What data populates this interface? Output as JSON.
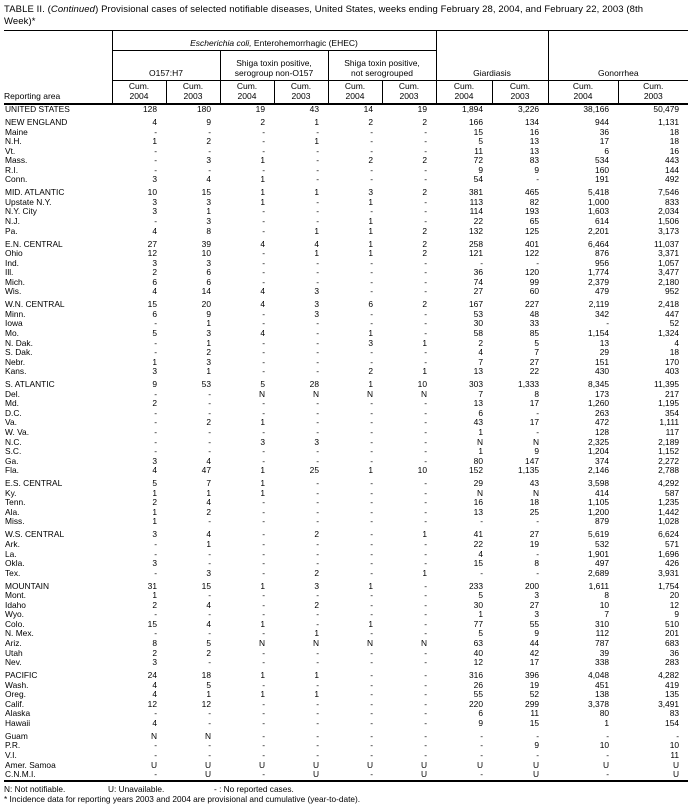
{
  "title": {
    "part1": "TABLE II. (",
    "part2": "Continued",
    "part3": ") Provisional cases of selected notifiable diseases, United States, weeks ending February 28, 2004, and February 22, 2003 (8th Week)*"
  },
  "header": {
    "reporting_area_label": "Reporting area",
    "ehec": {
      "italic": "Escherichia coli,",
      "rest": " Enterohemorrhagic (EHEC)"
    },
    "groups": {
      "o157": {
        "line1": "O157:H7",
        "line2": ""
      },
      "shiga_non_o157": {
        "line1": "Shiga toxin positive,",
        "line2": "serogroup non-O157"
      },
      "shiga_not_sero": {
        "line1": "Shiga toxin positive,",
        "line2": "not serogrouped"
      },
      "giardiasis": {
        "line1": "Giardiasis",
        "line2": ""
      },
      "gonorrhea": {
        "line1": "Gonorrhea",
        "line2": ""
      }
    },
    "columns": [
      {
        "label": "Cum.",
        "year": "2004"
      },
      {
        "label": "Cum.",
        "year": "2003"
      },
      {
        "label": "Cum.",
        "year": "2004"
      },
      {
        "label": "Cum.",
        "year": "2003"
      },
      {
        "label": "Cum.",
        "year": "2004"
      },
      {
        "label": "Cum.",
        "year": "2003"
      },
      {
        "label": "Cum.",
        "year": "2004"
      },
      {
        "label": "Cum.",
        "year": "2003"
      },
      {
        "label": "Cum.",
        "year": "2004"
      },
      {
        "label": "Cum.",
        "year": "2003"
      }
    ]
  },
  "sections": [
    {
      "rows": [
        {
          "area": "UNITED STATES",
          "values": [
            "128",
            "180",
            "19",
            "43",
            "14",
            "19",
            "1,894",
            "3,226",
            "38,166",
            "50,479"
          ]
        }
      ]
    },
    {
      "rows": [
        {
          "area": "NEW ENGLAND",
          "values": [
            "4",
            "9",
            "2",
            "1",
            "2",
            "2",
            "166",
            "134",
            "944",
            "1,131"
          ]
        },
        {
          "area": "Maine",
          "values": [
            "-",
            "-",
            "-",
            "-",
            "-",
            "-",
            "15",
            "16",
            "36",
            "18"
          ]
        },
        {
          "area": "N.H.",
          "values": [
            "1",
            "2",
            "-",
            "1",
            "-",
            "-",
            "5",
            "13",
            "17",
            "18"
          ]
        },
        {
          "area": "Vt.",
          "values": [
            "-",
            "-",
            "-",
            "-",
            "-",
            "-",
            "11",
            "13",
            "6",
            "16"
          ]
        },
        {
          "area": "Mass.",
          "values": [
            "-",
            "3",
            "1",
            "-",
            "2",
            "2",
            "72",
            "83",
            "534",
            "443"
          ]
        },
        {
          "area": "R.I.",
          "values": [
            "-",
            "-",
            "-",
            "-",
            "-",
            "-",
            "9",
            "9",
            "160",
            "144"
          ]
        },
        {
          "area": "Conn.",
          "values": [
            "3",
            "4",
            "1",
            "-",
            "-",
            "-",
            "54",
            "-",
            "191",
            "492"
          ]
        }
      ]
    },
    {
      "rows": [
        {
          "area": "MID. ATLANTIC",
          "values": [
            "10",
            "15",
            "1",
            "1",
            "3",
            "2",
            "381",
            "465",
            "5,418",
            "7,546"
          ]
        },
        {
          "area": "Upstate N.Y.",
          "values": [
            "3",
            "3",
            "1",
            "-",
            "1",
            "-",
            "113",
            "82",
            "1,000",
            "833"
          ]
        },
        {
          "area": "N.Y. City",
          "values": [
            "3",
            "1",
            "-",
            "-",
            "-",
            "-",
            "114",
            "193",
            "1,603",
            "2,034"
          ]
        },
        {
          "area": "N.J.",
          "values": [
            "-",
            "3",
            "-",
            "-",
            "1",
            "-",
            "22",
            "65",
            "614",
            "1,506"
          ]
        },
        {
          "area": "Pa.",
          "values": [
            "4",
            "8",
            "-",
            "1",
            "1",
            "2",
            "132",
            "125",
            "2,201",
            "3,173"
          ]
        }
      ]
    },
    {
      "rows": [
        {
          "area": "E.N. CENTRAL",
          "values": [
            "27",
            "39",
            "4",
            "4",
            "1",
            "2",
            "258",
            "401",
            "6,464",
            "11,037"
          ]
        },
        {
          "area": "Ohio",
          "values": [
            "12",
            "10",
            "-",
            "1",
            "1",
            "2",
            "121",
            "122",
            "876",
            "3,371"
          ]
        },
        {
          "area": "Ind.",
          "values": [
            "3",
            "3",
            "-",
            "-",
            "-",
            "-",
            "-",
            "-",
            "956",
            "1,057"
          ]
        },
        {
          "area": "Ill.",
          "values": [
            "2",
            "6",
            "-",
            "-",
            "-",
            "-",
            "36",
            "120",
            "1,774",
            "3,477"
          ]
        },
        {
          "area": "Mich.",
          "values": [
            "6",
            "6",
            "-",
            "-",
            "-",
            "-",
            "74",
            "99",
            "2,379",
            "2,180"
          ]
        },
        {
          "area": "Wis.",
          "values": [
            "4",
            "14",
            "4",
            "3",
            "-",
            "-",
            "27",
            "60",
            "479",
            "952"
          ]
        }
      ]
    },
    {
      "rows": [
        {
          "area": "W.N. CENTRAL",
          "values": [
            "15",
            "20",
            "4",
            "3",
            "6",
            "2",
            "167",
            "227",
            "2,119",
            "2,418"
          ]
        },
        {
          "area": "Minn.",
          "values": [
            "6",
            "9",
            "-",
            "3",
            "-",
            "-",
            "53",
            "48",
            "342",
            "447"
          ]
        },
        {
          "area": "Iowa",
          "values": [
            "-",
            "1",
            "-",
            "-",
            "-",
            "-",
            "30",
            "33",
            "-",
            "52"
          ]
        },
        {
          "area": "Mo.",
          "values": [
            "5",
            "3",
            "4",
            "-",
            "1",
            "-",
            "58",
            "85",
            "1,154",
            "1,324"
          ]
        },
        {
          "area": "N. Dak.",
          "values": [
            "-",
            "1",
            "-",
            "-",
            "3",
            "1",
            "2",
            "5",
            "13",
            "4"
          ]
        },
        {
          "area": "S. Dak.",
          "values": [
            "-",
            "2",
            "-",
            "-",
            "-",
            "-",
            "4",
            "7",
            "29",
            "18"
          ]
        },
        {
          "area": "Nebr.",
          "values": [
            "1",
            "3",
            "-",
            "-",
            "-",
            "-",
            "7",
            "27",
            "151",
            "170"
          ]
        },
        {
          "area": "Kans.",
          "values": [
            "3",
            "1",
            "-",
            "-",
            "2",
            "1",
            "13",
            "22",
            "430",
            "403"
          ]
        }
      ]
    },
    {
      "rows": [
        {
          "area": "S. ATLANTIC",
          "values": [
            "9",
            "53",
            "5",
            "28",
            "1",
            "10",
            "303",
            "1,333",
            "8,345",
            "11,395"
          ]
        },
        {
          "area": "Del.",
          "values": [
            "-",
            "-",
            "N",
            "N",
            "N",
            "N",
            "7",
            "8",
            "173",
            "217"
          ]
        },
        {
          "area": "Md.",
          "values": [
            "2",
            "-",
            "-",
            "-",
            "-",
            "-",
            "13",
            "17",
            "1,260",
            "1,195"
          ]
        },
        {
          "area": "D.C.",
          "values": [
            "-",
            "-",
            "-",
            "-",
            "-",
            "-",
            "6",
            "-",
            "263",
            "354"
          ]
        },
        {
          "area": "Va.",
          "values": [
            "-",
            "2",
            "1",
            "-",
            "-",
            "-",
            "43",
            "17",
            "472",
            "1,111"
          ]
        },
        {
          "area": "W. Va.",
          "values": [
            "-",
            "-",
            "-",
            "-",
            "-",
            "-",
            "1",
            "-",
            "128",
            "117"
          ]
        },
        {
          "area": "N.C.",
          "values": [
            "-",
            "-",
            "3",
            "3",
            "-",
            "-",
            "N",
            "N",
            "2,325",
            "2,189"
          ]
        },
        {
          "area": "S.C.",
          "values": [
            "-",
            "-",
            "-",
            "-",
            "-",
            "-",
            "1",
            "9",
            "1,204",
            "1,152"
          ]
        },
        {
          "area": "Ga.",
          "values": [
            "3",
            "4",
            "-",
            "-",
            "-",
            "-",
            "80",
            "147",
            "374",
            "2,272"
          ]
        },
        {
          "area": "Fla.",
          "values": [
            "4",
            "47",
            "1",
            "25",
            "1",
            "10",
            "152",
            "1,135",
            "2,146",
            "2,788"
          ]
        }
      ]
    },
    {
      "rows": [
        {
          "area": "E.S. CENTRAL",
          "values": [
            "5",
            "7",
            "1",
            "-",
            "-",
            "-",
            "29",
            "43",
            "3,598",
            "4,292"
          ]
        },
        {
          "area": "Ky.",
          "values": [
            "1",
            "1",
            "1",
            "-",
            "-",
            "-",
            "N",
            "N",
            "414",
            "587"
          ]
        },
        {
          "area": "Tenn.",
          "values": [
            "2",
            "4",
            "-",
            "-",
            "-",
            "-",
            "16",
            "18",
            "1,105",
            "1,235"
          ]
        },
        {
          "area": "Ala.",
          "values": [
            "1",
            "2",
            "-",
            "-",
            "-",
            "-",
            "13",
            "25",
            "1,200",
            "1,442"
          ]
        },
        {
          "area": "Miss.",
          "values": [
            "1",
            "-",
            "-",
            "-",
            "-",
            "-",
            "-",
            "-",
            "879",
            "1,028"
          ]
        }
      ]
    },
    {
      "rows": [
        {
          "area": "W.S. CENTRAL",
          "values": [
            "3",
            "4",
            "-",
            "2",
            "-",
            "1",
            "41",
            "27",
            "5,619",
            "6,624"
          ]
        },
        {
          "area": "Ark.",
          "values": [
            "-",
            "1",
            "-",
            "-",
            "-",
            "-",
            "22",
            "19",
            "532",
            "571"
          ]
        },
        {
          "area": "La.",
          "values": [
            "-",
            "-",
            "-",
            "-",
            "-",
            "-",
            "4",
            "-",
            "1,901",
            "1,696"
          ]
        },
        {
          "area": "Okla.",
          "values": [
            "3",
            "-",
            "-",
            "-",
            "-",
            "-",
            "15",
            "8",
            "497",
            "426"
          ]
        },
        {
          "area": "Tex.",
          "values": [
            "-",
            "3",
            "-",
            "2",
            "-",
            "1",
            "-",
            "-",
            "2,689",
            "3,931"
          ]
        }
      ]
    },
    {
      "rows": [
        {
          "area": "MOUNTAIN",
          "values": [
            "31",
            "15",
            "1",
            "3",
            "1",
            "-",
            "233",
            "200",
            "1,611",
            "1,754"
          ]
        },
        {
          "area": "Mont.",
          "values": [
            "1",
            "-",
            "-",
            "-",
            "-",
            "-",
            "5",
            "3",
            "8",
            "20"
          ]
        },
        {
          "area": "Idaho",
          "values": [
            "2",
            "4",
            "-",
            "2",
            "-",
            "-",
            "30",
            "27",
            "10",
            "12"
          ]
        },
        {
          "area": "Wyo.",
          "values": [
            "-",
            "-",
            "-",
            "-",
            "-",
            "-",
            "1",
            "3",
            "7",
            "9"
          ]
        },
        {
          "area": "Colo.",
          "values": [
            "15",
            "4",
            "1",
            "-",
            "1",
            "-",
            "77",
            "55",
            "310",
            "510"
          ]
        },
        {
          "area": "N. Mex.",
          "values": [
            "-",
            "-",
            "-",
            "1",
            "-",
            "-",
            "5",
            "9",
            "112",
            "201"
          ]
        },
        {
          "area": "Ariz.",
          "values": [
            "8",
            "5",
            "N",
            "N",
            "N",
            "N",
            "63",
            "44",
            "787",
            "683"
          ]
        },
        {
          "area": "Utah",
          "values": [
            "2",
            "2",
            "-",
            "-",
            "-",
            "-",
            "40",
            "42",
            "39",
            "36"
          ]
        },
        {
          "area": "Nev.",
          "values": [
            "3",
            "-",
            "-",
            "-",
            "-",
            "-",
            "12",
            "17",
            "338",
            "283"
          ]
        }
      ]
    },
    {
      "rows": [
        {
          "area": "PACIFIC",
          "values": [
            "24",
            "18",
            "1",
            "1",
            "-",
            "-",
            "316",
            "396",
            "4,048",
            "4,282"
          ]
        },
        {
          "area": "Wash.",
          "values": [
            "4",
            "5",
            "-",
            "-",
            "-",
            "-",
            "26",
            "19",
            "451",
            "419"
          ]
        },
        {
          "area": "Oreg.",
          "values": [
            "4",
            "1",
            "1",
            "1",
            "-",
            "-",
            "55",
            "52",
            "138",
            "135"
          ]
        },
        {
          "area": "Calif.",
          "values": [
            "12",
            "12",
            "-",
            "-",
            "-",
            "-",
            "220",
            "299",
            "3,378",
            "3,491"
          ]
        },
        {
          "area": "Alaska",
          "values": [
            "-",
            "-",
            "-",
            "-",
            "-",
            "-",
            "6",
            "11",
            "80",
            "83"
          ]
        },
        {
          "area": "Hawaii",
          "values": [
            "4",
            "-",
            "-",
            "-",
            "-",
            "-",
            "9",
            "15",
            "1",
            "154"
          ]
        }
      ]
    },
    {
      "rows": [
        {
          "area": "Guam",
          "values": [
            "N",
            "N",
            "-",
            "-",
            "-",
            "-",
            "-",
            "-",
            "-",
            "-"
          ]
        },
        {
          "area": "P.R.",
          "values": [
            "-",
            "-",
            "-",
            "-",
            "-",
            "-",
            "-",
            "9",
            "10",
            "10"
          ]
        },
        {
          "area": "V.I.",
          "values": [
            "-",
            "-",
            "-",
            "-",
            "-",
            "-",
            "-",
            "-",
            "-",
            "11"
          ]
        },
        {
          "area": "Amer. Samoa",
          "values": [
            "U",
            "U",
            "U",
            "U",
            "U",
            "U",
            "U",
            "U",
            "U",
            "U"
          ]
        },
        {
          "area": "C.N.M.I.",
          "values": [
            "-",
            "U",
            "-",
            "U",
            "-",
            "U",
            "-",
            "U",
            "-",
            "U"
          ]
        }
      ]
    }
  ],
  "footnotes": {
    "legend1": "N: Not notifiable.",
    "legend2": "U: Unavailable.",
    "legend3": "- : No reported cases.",
    "note": "* Incidence data for reporting years 2003 and 2004 are provisional and cumulative (year-to-date)."
  }
}
